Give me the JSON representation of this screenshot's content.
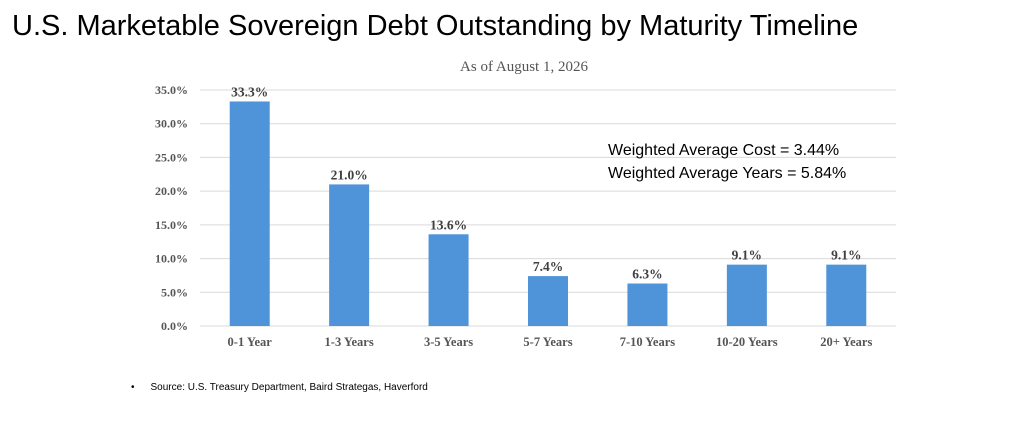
{
  "page": {
    "title": "U.S. Marketable Sovereign Debt Outstanding by Maturity Timeline",
    "source_bullet": "•",
    "source": "Source: U.S. Treasury Department, Baird Strategas, Haverford"
  },
  "chart_data": {
    "type": "bar",
    "title": "",
    "subtitle": "As of August 1, 2026",
    "xlabel": "",
    "ylabel": "",
    "categories": [
      "0-1 Year",
      "1-3 Years",
      "3-5 Years",
      "5-7 Years",
      "7-10 Years",
      "10-20 Years",
      "20+ Years"
    ],
    "values": [
      33.3,
      21.0,
      13.6,
      7.4,
      6.3,
      9.1,
      9.1
    ],
    "data_labels": [
      "33.3%",
      "21.0%",
      "13.6%",
      "7.4%",
      "6.3%",
      "9.1%",
      "9.1%"
    ],
    "ylim": [
      0,
      35
    ],
    "y_ticks": [
      0,
      5,
      10,
      15,
      20,
      25,
      30,
      35
    ],
    "y_tick_labels": [
      "0.0%",
      "5.0%",
      "10.0%",
      "15.0%",
      "20.0%",
      "25.0%",
      "30.0%",
      "35.0%"
    ],
    "grid": true,
    "legend": "none",
    "bar_color": "#4f93d9",
    "grid_color": "#d9d9d9",
    "annotations": [
      "Weighted Average Cost = 3.44%",
      "Weighted Average Years = 5.84%"
    ]
  }
}
